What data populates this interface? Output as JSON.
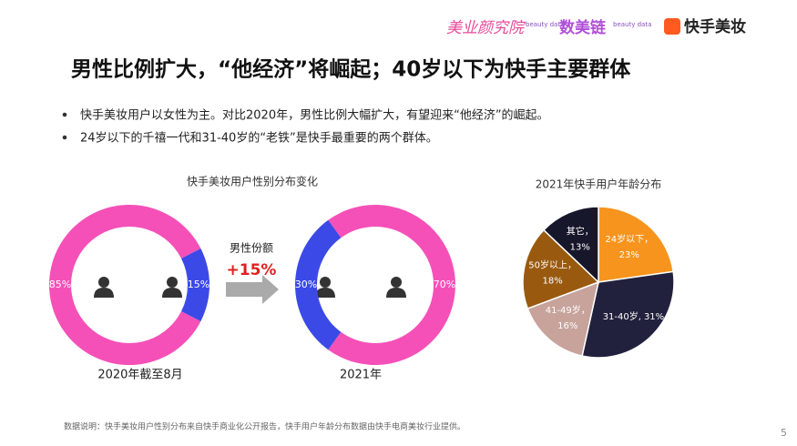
{
  "header": {
    "logos": [
      "美业颜究院",
      "beauty data",
      "数美链",
      "beauty data",
      "快手美妆"
    ]
  },
  "title": "男性比例扩大，“他经济”将崛起；40岁以下为快手主要群体",
  "bullets": [
    "快手美妆用户以女性为主。对比2020年，男性比例大幅扩大，有望迎来“他经济”的崛起。",
    "24岁以下的千禧一代和31-40岁的“老铁”是快手最重要的两个群体。"
  ],
  "gender_title": "快手美妆用户性别分布变化",
  "change": {
    "label": "男性份额",
    "text": "+15%"
  },
  "chart_data": [
    {
      "type": "donut",
      "caption": "2020年截至8月",
      "values": [
        85,
        15
      ],
      "value_labels": [
        "85%",
        "15%"
      ],
      "colors": [
        "#f550b8",
        "#3b4ae6"
      ]
    },
    {
      "type": "donut",
      "caption": "2021年",
      "values": [
        70,
        30
      ],
      "value_labels": [
        "70%",
        "30%"
      ],
      "colors": [
        "#f550b8",
        "#3b4ae6"
      ]
    },
    {
      "type": "pie",
      "title": "2021年快手用户年龄分布",
      "categories": [
        "24岁以下，",
        "31-40岁,",
        "41-49岁，",
        "50岁以上，",
        "其它，"
      ],
      "values": [
        23,
        31,
        16,
        18,
        13
      ],
      "value_labels": [
        "23%",
        "31%",
        "16%",
        "18%",
        "13%"
      ],
      "colors": [
        "#f7941d",
        "#22213d",
        "#c7a39b",
        "#995a10",
        "#17172b"
      ]
    }
  ],
  "footnote": "数据说明：快手美妆用户性别分布来自快手商业化公开报告，快手用户年龄分布数据由快手电商美妆行业提供。",
  "page_number": "5"
}
